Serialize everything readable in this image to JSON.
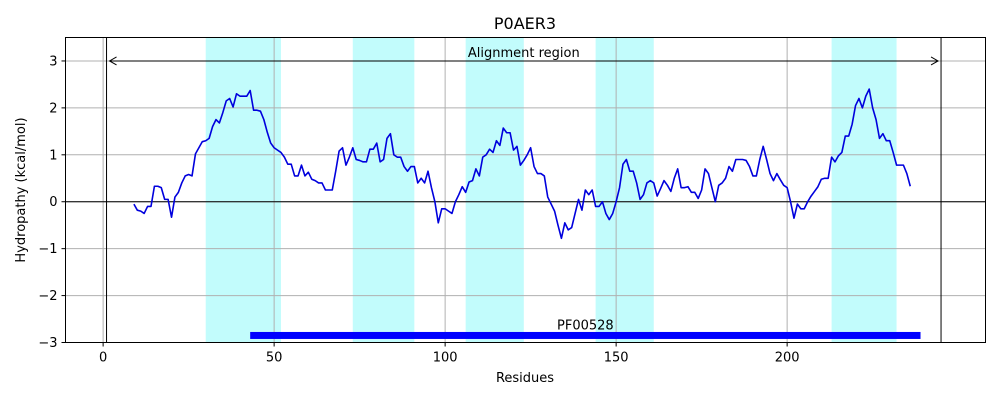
{
  "chart_data": {
    "type": "line",
    "title": "P0AER3",
    "xlabel": "Residues",
    "ylabel": "Hydropathy (kcal/mol)",
    "xlim": [
      -11,
      258
    ],
    "ylim": [
      -3,
      3.5
    ],
    "xticks": [
      0,
      50,
      100,
      150,
      200
    ],
    "yticks": [
      -3,
      -2,
      -1,
      0,
      1,
      2,
      3
    ],
    "xtick_labels": [
      "0",
      "50",
      "100",
      "150",
      "200"
    ],
    "ytick_labels": [
      "−3",
      "−2",
      "−1",
      "0",
      "1",
      "2",
      "3"
    ],
    "grid": true,
    "colors": {
      "line": "#0000dd",
      "tm_band": "#c2fcfc",
      "domain_bar": "#0000ff"
    },
    "series": [
      {
        "x_start": 9,
        "values": [
          -0.05,
          -0.18,
          -0.2,
          -0.25,
          -0.1,
          -0.1,
          0.33,
          0.33,
          0.3,
          0.05,
          0.05,
          -0.33,
          0.1,
          0.2,
          0.4,
          0.55,
          0.58,
          0.55,
          1.02,
          1.15,
          1.28,
          1.3,
          1.35,
          1.6,
          1.75,
          1.68,
          1.9,
          2.15,
          2.2,
          2.02,
          2.3,
          2.25,
          2.25,
          2.25,
          2.37,
          1.95,
          1.95,
          1.93,
          1.75,
          1.48,
          1.25,
          1.15,
          1.1,
          1.05,
          0.95,
          0.8,
          0.8,
          0.55,
          0.55,
          0.78,
          0.55,
          0.63,
          0.48,
          0.45,
          0.4,
          0.4,
          0.25,
          0.25,
          0.25,
          0.65,
          1.08,
          1.15,
          0.78,
          0.95,
          1.15,
          0.9,
          0.88,
          0.85,
          0.85,
          1.12,
          1.12,
          1.25,
          0.85,
          0.9,
          1.35,
          1.45,
          1.0,
          0.95,
          0.95,
          0.75,
          0.65,
          0.75,
          0.75,
          0.4,
          0.5,
          0.4,
          0.65,
          0.3,
          0.0,
          -0.45,
          -0.15,
          -0.15,
          -0.2,
          -0.25,
          0.0,
          0.15,
          0.32,
          0.2,
          0.42,
          0.45,
          0.7,
          0.55,
          0.95,
          1.0,
          1.12,
          1.05,
          1.3,
          1.2,
          1.57,
          1.47,
          1.47,
          1.1,
          1.18,
          0.78,
          0.88,
          1.0,
          1.15,
          0.75,
          0.6,
          0.6,
          0.55,
          0.1,
          -0.05,
          -0.2,
          -0.5,
          -0.78,
          -0.45,
          -0.6,
          -0.55,
          -0.25,
          0.05,
          -0.18,
          0.25,
          0.15,
          0.25,
          -0.1,
          -0.1,
          0.0,
          -0.25,
          -0.38,
          -0.25,
          0.0,
          0.3,
          0.8,
          0.9,
          0.65,
          0.65,
          0.4,
          0.05,
          0.15,
          0.4,
          0.45,
          0.4,
          0.12,
          0.28,
          0.45,
          0.35,
          0.22,
          0.5,
          0.7,
          0.3,
          0.3,
          0.32,
          0.2,
          0.2,
          0.07,
          0.25,
          0.7,
          0.6,
          0.3,
          0.0,
          0.35,
          0.4,
          0.5,
          0.75,
          0.65,
          0.9,
          0.9,
          0.9,
          0.88,
          0.75,
          0.55,
          0.55,
          0.9,
          1.18,
          0.9,
          0.6,
          0.45,
          0.6,
          0.47,
          0.35,
          0.3,
          0.0,
          -0.35,
          -0.05,
          -0.15,
          -0.15,
          0.0,
          0.12,
          0.22,
          0.32,
          0.48,
          0.5,
          0.5,
          0.95,
          0.85,
          0.98,
          1.05,
          1.4,
          1.4,
          1.65,
          2.05,
          2.2,
          2.0,
          2.25,
          2.4,
          2.0,
          1.75,
          1.35,
          1.45,
          1.3,
          1.3,
          1.05,
          0.78,
          0.78,
          0.78,
          0.6,
          0.33
        ]
      }
    ],
    "tm_regions": [
      [
        30,
        52
      ],
      [
        73,
        91
      ],
      [
        106,
        123
      ],
      [
        144,
        161
      ],
      [
        213,
        232
      ]
    ],
    "alignment_region": {
      "label": "Alignment region",
      "start": 1,
      "end": 245
    },
    "domains": [
      {
        "label": "PF00528",
        "start": 43,
        "end": 239,
        "y": -2.85
      }
    ]
  }
}
